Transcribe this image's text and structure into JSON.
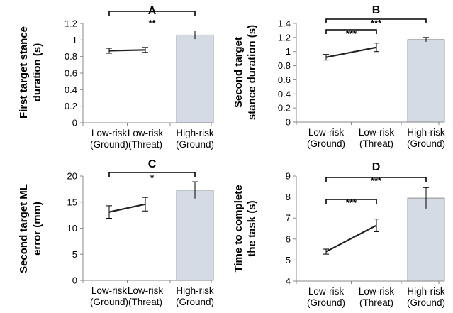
{
  "chart_data": [
    {
      "type": "line+bar",
      "title": "A",
      "ylabel_lines": [
        "First target stance",
        "duration (s)"
      ],
      "categories": [
        [
          "Low-risk",
          "(Ground)"
        ],
        [
          "Low-risk",
          "(Threat)"
        ],
        [
          "High-risk",
          "(Ground)"
        ]
      ],
      "line_values": [
        0.87,
        0.88
      ],
      "line_errors": [
        0.03,
        0.03
      ],
      "bar_value": 1.06,
      "bar_error": 0.05,
      "ylim": [
        0,
        1.2
      ],
      "yticks": [
        0,
        0.2,
        0.4,
        0.6,
        0.8,
        1,
        1.2
      ],
      "ytick_labels": [
        "0",
        "0.2",
        "0.4",
        "0.6",
        "0.8",
        "1",
        "1.2"
      ],
      "significance": [
        {
          "from": 0,
          "to": 2,
          "label": "**"
        }
      ]
    },
    {
      "type": "line+bar",
      "title": "B",
      "ylabel_lines": [
        "Second target",
        "stance duration (s)"
      ],
      "categories": [
        [
          "Low-risk",
          "(Ground)"
        ],
        [
          "Low-risk",
          "(Threat)"
        ],
        [
          "High-risk",
          "(Ground)"
        ]
      ],
      "line_values": [
        0.92,
        1.06
      ],
      "line_errors": [
        0.04,
        0.06
      ],
      "bar_value": 1.17,
      "bar_error": 0.03,
      "ylim": [
        0,
        1.4
      ],
      "yticks": [
        0,
        0.2,
        0.4,
        0.6,
        0.8,
        1,
        1.2,
        1.4
      ],
      "ytick_labels": [
        "0",
        "0.2",
        "0.4",
        "0.6",
        "0.8",
        "1",
        "1.2",
        "1.4"
      ],
      "significance": [
        {
          "from": 0,
          "to": 1,
          "label": "***"
        },
        {
          "from": 0,
          "to": 2,
          "label": "***"
        }
      ]
    },
    {
      "type": "line+bar",
      "title": "C",
      "ylabel_lines": [
        "Second target ML",
        "error (mm)"
      ],
      "categories": [
        [
          "Low-risk",
          "(Ground)"
        ],
        [
          "Low-risk",
          "(Threat)"
        ],
        [
          "High-risk",
          "(Ground)"
        ]
      ],
      "line_values": [
        13.1,
        14.6
      ],
      "line_errors": [
        1.2,
        1.3
      ],
      "bar_value": 17.3,
      "bar_error": 1.6,
      "ylim": [
        0,
        20
      ],
      "yticks": [
        0,
        5,
        10,
        15,
        20
      ],
      "ytick_labels": [
        "0",
        "5",
        "10",
        "15",
        "20"
      ],
      "significance": [
        {
          "from": 0,
          "to": 2,
          "label": "*"
        }
      ]
    },
    {
      "type": "line+bar",
      "title": "D",
      "ylabel_lines": [
        "Time to complete",
        "the task (s)"
      ],
      "categories": [
        [
          "Low-risk",
          "(Ground)"
        ],
        [
          "Low-risk",
          "(Threat)"
        ],
        [
          "High-risk",
          "(Ground)"
        ]
      ],
      "line_values": [
        5.4,
        6.65
      ],
      "line_errors": [
        0.12,
        0.3
      ],
      "bar_value": 7.95,
      "bar_error": 0.5,
      "ylim": [
        4,
        9
      ],
      "yticks": [
        4,
        5,
        6,
        7,
        8,
        9
      ],
      "ytick_labels": [
        "4",
        "5",
        "6",
        "7",
        "8",
        "9"
      ],
      "significance": [
        {
          "from": 0,
          "to": 1,
          "label": "***"
        },
        {
          "from": 0,
          "to": 2,
          "label": "***"
        }
      ]
    }
  ],
  "colors": {
    "bar_fill": "#d5dbe5",
    "bar_stroke": "#7a7a7a",
    "line": "#222222",
    "axis": "#888888"
  }
}
